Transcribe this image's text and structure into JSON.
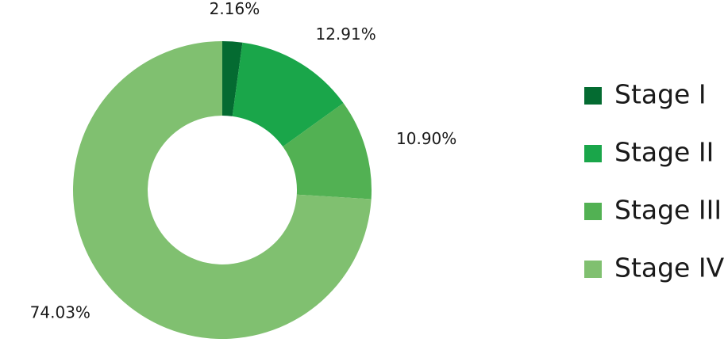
{
  "chart_data": {
    "type": "donut",
    "categories": [
      "Stage I",
      "Stage II",
      "Stage III",
      "Stage IV"
    ],
    "values": [
      2.16,
      12.91,
      10.9,
      74.03
    ],
    "value_labels": [
      "2.16%",
      "12.91%",
      "10.90%",
      "74.03%"
    ],
    "colors": [
      "#046b31",
      "#1aa64a",
      "#52b153",
      "#80c070"
    ]
  }
}
